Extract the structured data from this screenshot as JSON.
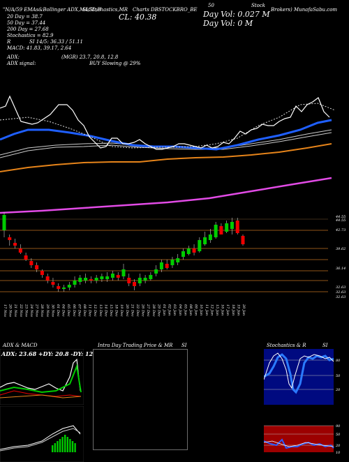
{
  "header": {
    "left_title": "\"N/A/59 EMAs&Bollinger ADX,MACD,B",
    "mid_title": "SI,Stochastics,MR",
    "chart_name": "Charts DBSTOCKBRO_BE",
    "mid_code": "50",
    "right_brand": "Brokers) MunafaSabu.com",
    "right_tag": "Stock",
    "cl_label": "CL:",
    "cl_value": "40.38",
    "day_vol_label": "Day Vol:",
    "day_vol_value": "0.027",
    "day_vol_unit": "M",
    "day_vol2_label": "Day Vol:",
    "day_vol2_value": "0",
    "day_vol2_unit": "M"
  },
  "indicators": {
    "ema20_label": "20 Day = 38.7",
    "ema50_label": "50 Day = 37.44",
    "ema200_label": "200 Day = 27.68",
    "stoch_label": "Stochastics = 82.9",
    "r_label": "R",
    "si_label": "SI 14/5: 36.33 / 51.11",
    "macd_label": "MACD: 41.83, 39.17, 2.64",
    "adx_label": "ADX:",
    "adx_values": "(MGR) 23.7, 20.8, 12.8",
    "adx_signal_label": "ADX signal:",
    "adx_signal_value": "BUY Slowing @ 29%"
  },
  "price_axis": [
    "44.55",
    "44.55",
    "42.73",
    "39.62",
    "36.14",
    "32.63",
    "32.63",
    "32.63"
  ],
  "dates": [
    "17 Nov",
    "20 Nov",
    "21 Nov",
    "22 Nov",
    "23 Nov",
    "24 Nov",
    "27 Nov",
    "28 Nov",
    "29 Nov",
    "30 Nov",
    "01 Dec",
    "04 Dec",
    "05 Dec",
    "06 Dec",
    "07 Dec",
    "08 Dec",
    "11 Dec",
    "12 Dec",
    "13 Dec",
    "14 Dec",
    "15 Dec",
    "18 Dec",
    "19 Dec",
    "20 Dec",
    "21 Dec",
    "22 Dec",
    "26 Dec",
    "27 Dec",
    "28 Dec",
    "29 Dec",
    "01 Jan",
    "02 Jan",
    "03 Jan",
    "04 Jan",
    "05 Jan",
    "08 Jan",
    "09 Jan",
    "10 Jan",
    "11 Jan",
    "12 Jan",
    "15 Jan",
    "16 Jan",
    "17 Jan",
    "18 Jan",
    "19 Jan",
    "20 Jan"
  ],
  "panels": {
    "adx_title": "ADX & MACD",
    "adx_text": "ADX: 23.68 +DY: 20.8 -DY: 12.83",
    "intraday_title": "Intra Day Trading Price & MR",
    "intraday_si": "SI",
    "stoch_title": "Stochastics & R",
    "stoch_si": "SI",
    "stoch_ticks": [
      "80",
      "50",
      "20"
    ],
    "si_ticks": [
      "90",
      "50",
      "20",
      "10"
    ]
  },
  "colors": {
    "background": "#000000",
    "up_candle": "#00cc00",
    "down_candle": "#ee0000",
    "ema_fast": "#1f5fff",
    "ema_orange": "#e6841a",
    "ema_magenta": "#e24be6",
    "si_red_band": "#9c0000",
    "stoch_navy": "#000a80"
  }
}
